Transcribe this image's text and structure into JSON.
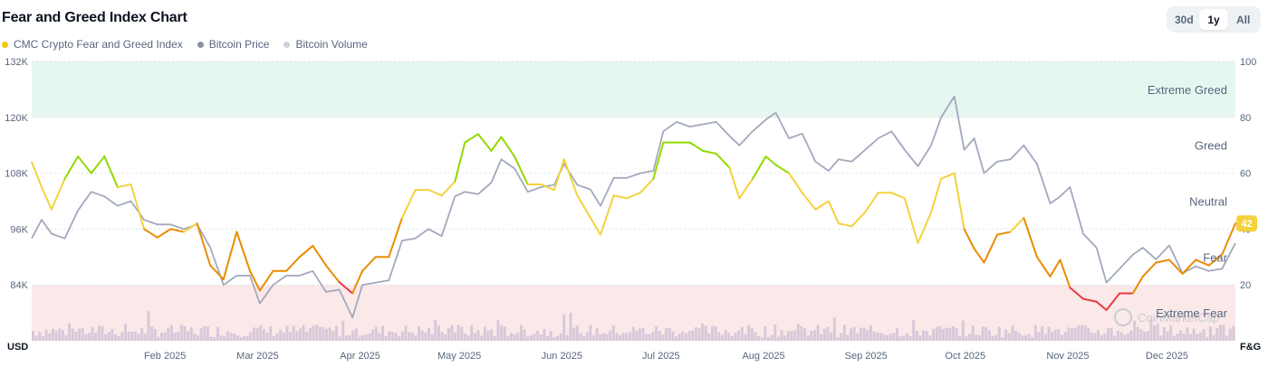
{
  "title": "Fear and Greed Index Chart",
  "legend": [
    {
      "label": "CMC Crypto Fear and Greed Index",
      "color": "#f7c600"
    },
    {
      "label": "Bitcoin Price",
      "color": "#8a92a5"
    },
    {
      "label": "Bitcoin Volume",
      "color": "#cdd1dc"
    }
  ],
  "range_buttons": [
    {
      "label": "30d",
      "active": false
    },
    {
      "label": "1y",
      "active": true
    },
    {
      "label": "All",
      "active": false
    }
  ],
  "watermark": "CoinMarketCap",
  "current_badge": "42",
  "colors": {
    "extreme_greed": "#16c784",
    "greed": "#93d900",
    "neutral": "#f3d23e",
    "fear": "#ea8c00",
    "extreme_fear": "#ea3943",
    "price": "#a2a9bd",
    "volume": "#d7c9d8",
    "badge": "#f3d23e"
  },
  "chart_data": {
    "type": "line",
    "left_axis": {
      "unit": "USD",
      "ticks": [
        "84K",
        "96K",
        "108K",
        "120K",
        "132K"
      ],
      "range": [
        72000,
        132000
      ]
    },
    "right_axis": {
      "unit": "F&G",
      "ticks": [
        "20",
        "40",
        "60",
        "80",
        "100"
      ],
      "range": [
        0,
        100
      ]
    },
    "x_ticks": [
      "Feb 2025",
      "Mar 2025",
      "Apr 2025",
      "May 2025",
      "Jun 2025",
      "Jul 2025",
      "Aug 2025",
      "Sep 2025",
      "Oct 2025",
      "Nov 2025",
      "Dec 2025"
    ],
    "x_range": [
      "2025-01-01",
      "2025-12-31"
    ],
    "zones": [
      {
        "label": "Extreme Greed",
        "from": 80,
        "to": 100
      },
      {
        "label": "Greed",
        "from": 60,
        "to": 80
      },
      {
        "label": "Neutral",
        "from": 40,
        "to": 60
      },
      {
        "label": "Fear",
        "from": 20,
        "to": 40
      },
      {
        "label": "Extreme Fear",
        "from": 0,
        "to": 20
      }
    ],
    "series": [
      {
        "name": "CMC Crypto Fear and Greed Index",
        "points": [
          [
            "2025-01-01",
            64
          ],
          [
            "2025-01-04",
            55
          ],
          [
            "2025-01-07",
            47
          ],
          [
            "2025-01-11",
            58
          ],
          [
            "2025-01-15",
            66
          ],
          [
            "2025-01-19",
            60
          ],
          [
            "2025-01-23",
            66
          ],
          [
            "2025-01-27",
            55
          ],
          [
            "2025-01-31",
            56
          ],
          [
            "2025-02-04",
            40
          ],
          [
            "2025-02-08",
            37
          ],
          [
            "2025-02-12",
            40
          ],
          [
            "2025-02-16",
            39
          ],
          [
            "2025-02-20",
            42
          ],
          [
            "2025-02-24",
            27
          ],
          [
            "2025-02-28",
            22
          ],
          [
            "2025-03-04",
            39
          ],
          [
            "2025-03-08",
            25
          ],
          [
            "2025-03-11",
            18
          ],
          [
            "2025-03-15",
            25
          ],
          [
            "2025-03-19",
            25
          ],
          [
            "2025-03-23",
            30
          ],
          [
            "2025-03-27",
            34
          ],
          [
            "2025-03-31",
            27
          ],
          [
            "2025-04-04",
            21
          ],
          [
            "2025-04-08",
            17
          ],
          [
            "2025-04-11",
            25
          ],
          [
            "2025-04-15",
            30
          ],
          [
            "2025-04-19",
            30
          ],
          [
            "2025-04-23",
            44
          ],
          [
            "2025-04-27",
            54
          ],
          [
            "2025-05-01",
            54
          ],
          [
            "2025-05-05",
            52
          ],
          [
            "2025-05-09",
            57
          ],
          [
            "2025-05-12",
            71
          ],
          [
            "2025-05-16",
            74
          ],
          [
            "2025-05-20",
            68
          ],
          [
            "2025-05-23",
            73
          ],
          [
            "2025-05-27",
            66
          ],
          [
            "2025-05-31",
            56
          ],
          [
            "2025-06-04",
            56
          ],
          [
            "2025-06-08",
            54
          ],
          [
            "2025-06-11",
            65
          ],
          [
            "2025-06-15",
            52
          ],
          [
            "2025-06-19",
            44
          ],
          [
            "2025-06-22",
            38
          ],
          [
            "2025-06-26",
            52
          ],
          [
            "2025-06-30",
            51
          ],
          [
            "2025-07-04",
            53
          ],
          [
            "2025-07-08",
            58
          ],
          [
            "2025-07-11",
            71
          ],
          [
            "2025-07-15",
            71
          ],
          [
            "2025-07-19",
            71
          ],
          [
            "2025-07-23",
            68
          ],
          [
            "2025-07-27",
            67
          ],
          [
            "2025-07-31",
            62
          ],
          [
            "2025-08-03",
            51
          ],
          [
            "2025-08-07",
            58
          ],
          [
            "2025-08-11",
            66
          ],
          [
            "2025-08-14",
            63
          ],
          [
            "2025-08-18",
            60
          ],
          [
            "2025-08-22",
            53
          ],
          [
            "2025-08-26",
            47
          ],
          [
            "2025-08-30",
            50
          ],
          [
            "2025-09-02",
            42
          ],
          [
            "2025-09-06",
            41
          ],
          [
            "2025-09-10",
            46
          ],
          [
            "2025-09-14",
            53
          ],
          [
            "2025-09-18",
            53
          ],
          [
            "2025-09-22",
            51
          ],
          [
            "2025-09-26",
            35
          ],
          [
            "2025-09-30",
            46
          ],
          [
            "2025-10-03",
            58
          ],
          [
            "2025-10-07",
            60
          ],
          [
            "2025-10-10",
            40
          ],
          [
            "2025-10-13",
            33
          ],
          [
            "2025-10-16",
            28
          ],
          [
            "2025-10-20",
            38
          ],
          [
            "2025-10-24",
            39
          ],
          [
            "2025-10-28",
            44
          ],
          [
            "2025-11-01",
            30
          ],
          [
            "2025-11-05",
            23
          ],
          [
            "2025-11-08",
            29
          ],
          [
            "2025-11-11",
            19
          ],
          [
            "2025-11-15",
            15
          ],
          [
            "2025-11-19",
            14
          ],
          [
            "2025-11-22",
            11
          ],
          [
            "2025-11-26",
            17
          ],
          [
            "2025-11-30",
            17
          ],
          [
            "2025-12-03",
            23
          ],
          [
            "2025-12-07",
            28
          ],
          [
            "2025-12-11",
            29
          ],
          [
            "2025-12-15",
            24
          ],
          [
            "2025-12-19",
            29
          ],
          [
            "2025-12-23",
            27
          ],
          [
            "2025-12-27",
            31
          ],
          [
            "2025-12-31",
            42
          ]
        ]
      },
      {
        "name": "Bitcoin Price",
        "points": [
          [
            "2025-01-01",
            94000
          ],
          [
            "2025-01-04",
            98000
          ],
          [
            "2025-01-07",
            95000
          ],
          [
            "2025-01-11",
            94000
          ],
          [
            "2025-01-15",
            100000
          ],
          [
            "2025-01-19",
            104000
          ],
          [
            "2025-01-23",
            103000
          ],
          [
            "2025-01-27",
            101000
          ],
          [
            "2025-01-31",
            102000
          ],
          [
            "2025-02-04",
            98000
          ],
          [
            "2025-02-08",
            97000
          ],
          [
            "2025-02-12",
            97000
          ],
          [
            "2025-02-16",
            96000
          ],
          [
            "2025-02-20",
            97000
          ],
          [
            "2025-02-24",
            92000
          ],
          [
            "2025-02-28",
            84000
          ],
          [
            "2025-03-04",
            86000
          ],
          [
            "2025-03-08",
            86000
          ],
          [
            "2025-03-11",
            80000
          ],
          [
            "2025-03-15",
            84000
          ],
          [
            "2025-03-19",
            86000
          ],
          [
            "2025-03-23",
            86000
          ],
          [
            "2025-03-27",
            87000
          ],
          [
            "2025-03-31",
            82500
          ],
          [
            "2025-04-04",
            83000
          ],
          [
            "2025-04-08",
            77000
          ],
          [
            "2025-04-11",
            84000
          ],
          [
            "2025-04-15",
            84500
          ],
          [
            "2025-04-19",
            85000
          ],
          [
            "2025-04-23",
            93500
          ],
          [
            "2025-04-27",
            94000
          ],
          [
            "2025-05-01",
            96000
          ],
          [
            "2025-05-05",
            94500
          ],
          [
            "2025-05-09",
            103000
          ],
          [
            "2025-05-12",
            104000
          ],
          [
            "2025-05-16",
            103500
          ],
          [
            "2025-05-20",
            106000
          ],
          [
            "2025-05-23",
            111000
          ],
          [
            "2025-05-27",
            109000
          ],
          [
            "2025-05-31",
            104000
          ],
          [
            "2025-06-04",
            105000
          ],
          [
            "2025-06-08",
            105500
          ],
          [
            "2025-06-11",
            110000
          ],
          [
            "2025-06-15",
            105500
          ],
          [
            "2025-06-19",
            104500
          ],
          [
            "2025-06-22",
            101000
          ],
          [
            "2025-06-26",
            107000
          ],
          [
            "2025-06-30",
            107000
          ],
          [
            "2025-07-04",
            108000
          ],
          [
            "2025-07-08",
            108500
          ],
          [
            "2025-07-11",
            117000
          ],
          [
            "2025-07-15",
            119000
          ],
          [
            "2025-07-19",
            118000
          ],
          [
            "2025-07-23",
            118500
          ],
          [
            "2025-07-27",
            119000
          ],
          [
            "2025-07-31",
            116000
          ],
          [
            "2025-08-03",
            114000
          ],
          [
            "2025-08-07",
            117000
          ],
          [
            "2025-08-11",
            119500
          ],
          [
            "2025-08-14",
            121000
          ],
          [
            "2025-08-18",
            115500
          ],
          [
            "2025-08-22",
            116500
          ],
          [
            "2025-08-26",
            110500
          ],
          [
            "2025-08-30",
            108500
          ],
          [
            "2025-09-02",
            111000
          ],
          [
            "2025-09-06",
            110500
          ],
          [
            "2025-09-10",
            113000
          ],
          [
            "2025-09-14",
            115500
          ],
          [
            "2025-09-18",
            117000
          ],
          [
            "2025-09-22",
            113000
          ],
          [
            "2025-09-26",
            109500
          ],
          [
            "2025-09-30",
            114000
          ],
          [
            "2025-10-03",
            120000
          ],
          [
            "2025-10-07",
            124500
          ],
          [
            "2025-10-10",
            113000
          ],
          [
            "2025-10-13",
            115500
          ],
          [
            "2025-10-16",
            108000
          ],
          [
            "2025-10-20",
            110500
          ],
          [
            "2025-10-24",
            111000
          ],
          [
            "2025-10-28",
            114000
          ],
          [
            "2025-11-01",
            110000
          ],
          [
            "2025-11-05",
            101500
          ],
          [
            "2025-11-08",
            103000
          ],
          [
            "2025-11-11",
            105000
          ],
          [
            "2025-11-15",
            95000
          ],
          [
            "2025-11-19",
            92000
          ],
          [
            "2025-11-22",
            84500
          ],
          [
            "2025-11-26",
            87500
          ],
          [
            "2025-11-30",
            90500
          ],
          [
            "2025-12-03",
            92000
          ],
          [
            "2025-12-07",
            89500
          ],
          [
            "2025-12-11",
            92500
          ],
          [
            "2025-12-15",
            86500
          ],
          [
            "2025-12-19",
            88000
          ],
          [
            "2025-12-23",
            87000
          ],
          [
            "2025-12-27",
            87500
          ],
          [
            "2025-12-31",
            93000
          ]
        ]
      },
      {
        "name": "Bitcoin Volume",
        "values_relative": "bars shown along bottom; absolute scale not printed"
      }
    ]
  }
}
